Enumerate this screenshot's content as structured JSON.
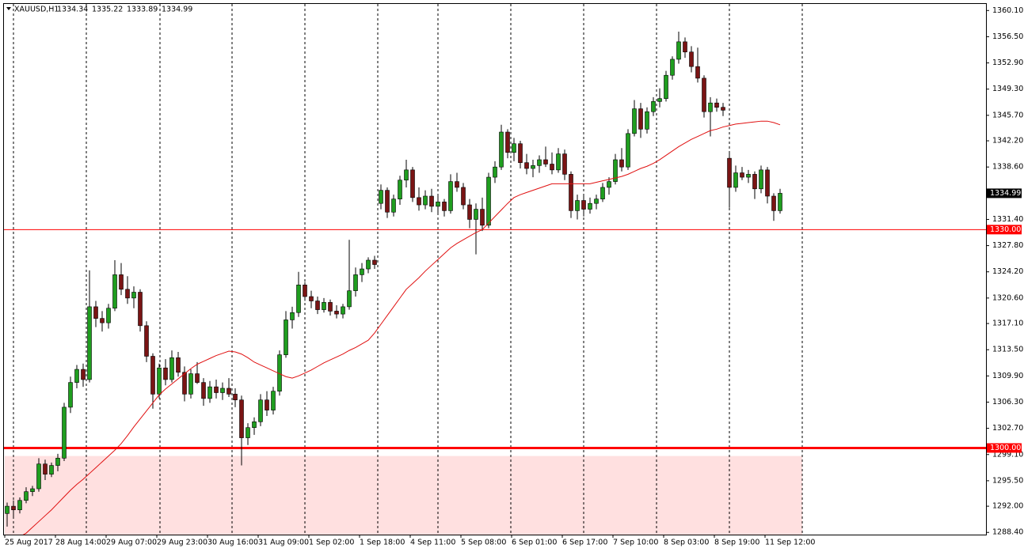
{
  "chart_data": {
    "type": "candlestick",
    "title": "XAUUSD,H1",
    "header_values": [
      1334.34,
      1335.22,
      1333.89,
      1334.99
    ],
    "categories": [
      "25 Aug 2017",
      null,
      null,
      null,
      null,
      null,
      null,
      null,
      "28 Aug 14:00",
      null,
      null,
      null,
      null,
      null,
      null,
      null,
      "29 Aug 07:00",
      null,
      null,
      null,
      null,
      null,
      null,
      null,
      "29 Aug 23:00",
      null,
      null,
      null,
      null,
      null,
      null,
      null,
      "30 Aug 16:00",
      null,
      null,
      null,
      null,
      null,
      null,
      null,
      "31 Aug 09:00",
      null,
      null,
      null,
      null,
      null,
      null,
      null,
      "1 Sep 02:00",
      null,
      null,
      null,
      null,
      null,
      null,
      null,
      "1 Sep 18:00",
      null,
      null,
      null,
      null,
      null,
      null,
      null,
      "4 Sep 11:00",
      null,
      null,
      null,
      null,
      null,
      null,
      null,
      "5 Sep 08:00",
      null,
      null,
      null,
      null,
      null,
      null,
      null,
      "6 Sep 01:00",
      null,
      null,
      null,
      null,
      null,
      null,
      null,
      "6 Sep 17:00",
      null,
      null,
      null,
      null,
      null,
      null,
      null,
      "7 Sep 10:00",
      null,
      null,
      null,
      null,
      null,
      null,
      null,
      "8 Sep 03:00",
      null,
      null,
      null,
      null,
      null,
      null,
      null,
      "8 Sep 19:00",
      null,
      null,
      null,
      null,
      null,
      null,
      null,
      "11 Sep 12:00",
      null,
      null
    ],
    "open": [
      1291.0,
      1292.0,
      1291.5,
      1292.8,
      1294.0,
      1294.4,
      1297.8,
      1296.4,
      1297.6,
      1298.6,
      1305.6,
      1309.0,
      1310.8,
      1309.4,
      1319.4,
      1317.8,
      1317.2,
      1319.2,
      1323.8,
      1321.8,
      1320.6,
      1321.4,
      1316.8,
      1312.6,
      1307.4,
      1311.0,
      1309.4,
      1312.4,
      1310.4,
      1307.4,
      1310.2,
      1309.0,
      1306.8,
      1308.4,
      1307.6,
      1308.2,
      1307.4,
      1306.6,
      1301.4,
      1302.8,
      1303.6,
      1306.6,
      1305.2,
      1307.8,
      1312.8,
      1317.6,
      1318.6,
      1322.4,
      1320.8,
      1320.2,
      1319.0,
      1320.0,
      1318.8,
      1318.4,
      1319.4,
      1321.6,
      1323.8,
      1324.6,
      1325.8,
      1333.6,
      1335.4,
      1332.4,
      1334.2,
      1336.8,
      1338.2,
      1334.4,
      1333.4,
      1334.6,
      1333.2,
      1333.8,
      1332.6,
      1336.6,
      1335.8,
      1333.4,
      1331.4,
      1332.8,
      1330.6,
      1337.2,
      1338.6,
      1343.4,
      1340.6,
      1341.8,
      1339.2,
      1338.4,
      1338.8,
      1339.6,
      1339.0,
      1338.2,
      1340.4,
      1337.6,
      1332.6,
      1334.0,
      1332.8,
      1333.6,
      1334.2,
      1335.8,
      1336.6,
      1339.6,
      1338.6,
      1343.2,
      1346.6,
      1343.8,
      1346.2,
      1347.6,
      1348.0,
      1351.2,
      1353.4,
      1355.8,
      1354.4,
      1352.4,
      1350.8,
      1346.2,
      1347.4,
      1346.8,
      1339.8,
      1335.8,
      1337.8,
      1337.2,
      1337.6,
      1335.6,
      1338.2,
      1334.6,
      1332.6
    ],
    "high": [
      1292.5,
      1292.8,
      1293.2,
      1294.6,
      1294.8,
      1298.6,
      1298.4,
      1298.0,
      1299.2,
      1306.2,
      1309.8,
      1311.4,
      1311.6,
      1324.4,
      1320.2,
      1318.8,
      1319.8,
      1325.8,
      1325.4,
      1323.6,
      1322.2,
      1321.8,
      1317.4,
      1313.0,
      1311.6,
      1312.2,
      1313.4,
      1313.2,
      1311.2,
      1310.8,
      1311.8,
      1309.6,
      1309.2,
      1309.4,
      1309.0,
      1309.6,
      1308.2,
      1307.2,
      1303.4,
      1304.2,
      1307.4,
      1307.8,
      1308.4,
      1313.4,
      1318.8,
      1319.4,
      1324.2,
      1322.8,
      1321.6,
      1320.8,
      1320.6,
      1320.4,
      1319.6,
      1319.8,
      1328.6,
      1324.8,
      1325.4,
      1326.2,
      1326.4,
      1336.2,
      1335.8,
      1334.8,
      1337.4,
      1339.6,
      1338.6,
      1335.8,
      1335.4,
      1335.6,
      1334.6,
      1334.2,
      1337.6,
      1337.8,
      1336.4,
      1334.2,
      1333.6,
      1334.4,
      1337.8,
      1339.4,
      1344.4,
      1343.8,
      1342.6,
      1342.2,
      1340.4,
      1339.6,
      1340.2,
      1341.4,
      1340.6,
      1341.2,
      1341.0,
      1338.0,
      1334.8,
      1334.6,
      1334.4,
      1334.8,
      1336.4,
      1337.2,
      1340.4,
      1341.2,
      1343.8,
      1347.8,
      1347.4,
      1346.8,
      1348.2,
      1349.4,
      1351.8,
      1353.8,
      1357.2,
      1356.4,
      1355.2,
      1355.0,
      1351.2,
      1348.2,
      1348.0,
      1347.4,
      1340.6,
      1338.8,
      1338.6,
      1338.2,
      1338.0,
      1338.8,
      1338.6,
      1335.0,
      1335.6
    ],
    "low": [
      1289.2,
      1290.6,
      1291.0,
      1292.4,
      1293.4,
      1294.0,
      1295.6,
      1296.0,
      1296.8,
      1298.2,
      1304.8,
      1308.2,
      1308.4,
      1309.0,
      1316.6,
      1316.0,
      1316.4,
      1318.8,
      1321.0,
      1319.8,
      1319.2,
      1316.0,
      1311.8,
      1305.4,
      1306.8,
      1308.6,
      1309.0,
      1309.8,
      1306.4,
      1306.8,
      1308.8,
      1305.8,
      1306.2,
      1306.8,
      1306.6,
      1307.0,
      1305.6,
      1297.6,
      1300.4,
      1301.8,
      1303.0,
      1304.4,
      1304.6,
      1307.2,
      1312.4,
      1316.4,
      1318.0,
      1320.2,
      1319.2,
      1318.4,
      1318.6,
      1318.2,
      1317.8,
      1317.8,
      1319.0,
      1320.8,
      1322.8,
      1324.0,
      1324.6,
      1332.8,
      1331.6,
      1331.8,
      1333.4,
      1335.8,
      1333.8,
      1332.6,
      1332.8,
      1332.4,
      1332.2,
      1331.8,
      1332.2,
      1335.2,
      1332.8,
      1330.2,
      1326.6,
      1329.8,
      1330.2,
      1336.4,
      1338.2,
      1339.8,
      1339.4,
      1338.4,
      1337.6,
      1337.2,
      1337.8,
      1338.6,
      1337.6,
      1337.8,
      1336.8,
      1331.6,
      1331.4,
      1331.8,
      1332.2,
      1332.8,
      1333.8,
      1334.8,
      1336.2,
      1338.0,
      1338.2,
      1342.8,
      1342.6,
      1343.2,
      1345.6,
      1346.8,
      1347.6,
      1350.6,
      1352.8,
      1353.6,
      1351.6,
      1350.2,
      1345.4,
      1342.8,
      1346.2,
      1345.6,
      1333.0,
      1335.2,
      1336.8,
      1336.4,
      1334.2,
      1335.0,
      1333.6,
      1331.2,
      1332.2
    ],
    "close": [
      1292.0,
      1291.5,
      1292.8,
      1294.0,
      1294.4,
      1297.8,
      1296.4,
      1297.6,
      1298.6,
      1305.6,
      1309.0,
      1310.8,
      1309.4,
      1319.4,
      1317.8,
      1317.2,
      1319.2,
      1323.8,
      1321.8,
      1320.6,
      1321.4,
      1316.8,
      1312.6,
      1307.4,
      1311.0,
      1309.4,
      1312.4,
      1310.4,
      1307.4,
      1310.2,
      1309.0,
      1306.8,
      1308.4,
      1307.6,
      1308.2,
      1307.4,
      1306.6,
      1301.4,
      1302.8,
      1303.6,
      1306.6,
      1305.2,
      1307.8,
      1312.8,
      1317.6,
      1318.6,
      1322.4,
      1320.8,
      1320.2,
      1319.0,
      1320.0,
      1318.8,
      1318.4,
      1319.4,
      1321.6,
      1323.8,
      1324.6,
      1325.8,
      1325.2,
      1335.4,
      1332.4,
      1334.2,
      1336.8,
      1338.2,
      1334.4,
      1333.4,
      1334.6,
      1333.2,
      1333.8,
      1332.6,
      1336.6,
      1335.8,
      1333.4,
      1331.4,
      1332.8,
      1330.6,
      1337.2,
      1338.6,
      1343.4,
      1340.6,
      1341.8,
      1339.2,
      1338.4,
      1338.8,
      1339.6,
      1339.0,
      1338.2,
      1340.4,
      1337.6,
      1332.6,
      1334.0,
      1332.8,
      1333.6,
      1334.2,
      1335.8,
      1336.6,
      1339.6,
      1338.6,
      1343.2,
      1346.6,
      1343.8,
      1346.2,
      1347.6,
      1348.0,
      1351.2,
      1353.4,
      1355.8,
      1354.4,
      1352.4,
      1350.8,
      1346.2,
      1347.4,
      1346.8,
      1346.4,
      1335.8,
      1337.8,
      1337.2,
      1337.6,
      1335.6,
      1338.2,
      1334.6,
      1332.6,
      1334.99
    ],
    "ma": [
      null,
      null,
      1287.8,
      1288.3,
      1289.1,
      1289.9,
      1290.7,
      1291.5,
      1292.4,
      1293.3,
      1294.2,
      1295.0,
      1295.7,
      1296.5,
      1297.3,
      1298.1,
      1298.9,
      1299.7,
      1300.6,
      1301.7,
      1302.9,
      1304.0,
      1305.1,
      1306.2,
      1307.3,
      1308.1,
      1308.8,
      1309.5,
      1310.2,
      1310.9,
      1311.5,
      1311.9,
      1312.3,
      1312.7,
      1313.0,
      1313.3,
      1313.2,
      1312.9,
      1312.4,
      1311.8,
      1311.4,
      1311.0,
      1310.6,
      1310.2,
      1309.8,
      1309.6,
      1309.9,
      1310.3,
      1310.7,
      1311.2,
      1311.7,
      1312.1,
      1312.5,
      1312.9,
      1313.4,
      1313.8,
      1314.3,
      1314.8,
      1315.8,
      1317.0,
      1318.2,
      1319.4,
      1320.6,
      1321.8,
      1322.6,
      1323.4,
      1324.3,
      1325.1,
      1325.9,
      1326.7,
      1327.5,
      1328.1,
      1328.6,
      1329.1,
      1329.6,
      1330.0,
      1330.9,
      1331.8,
      1332.7,
      1333.6,
      1334.4,
      1334.8,
      1335.1,
      1335.4,
      1335.7,
      1336.0,
      1336.3,
      1336.3,
      1336.3,
      1336.3,
      1336.3,
      1336.3,
      1336.3,
      1336.5,
      1336.7,
      1336.9,
      1337.1,
      1337.3,
      1337.6,
      1338.0,
      1338.4,
      1338.7,
      1339.1,
      1339.6,
      1340.2,
      1340.8,
      1341.4,
      1341.9,
      1342.4,
      1342.8,
      1343.2,
      1343.6,
      1343.8,
      1344.1,
      1344.3,
      1344.5,
      1344.6,
      1344.7,
      1344.8,
      1344.9,
      1344.9,
      1344.7,
      1344.4
    ],
    "up_color": "#1f9e1f",
    "down_color": "#7a1414",
    "wick_color": "#000000",
    "ma_color": "#e01010",
    "ylim": [
      1288.1,
      1361.0
    ],
    "yticks": [
      {
        "value": 1360.1,
        "label": "1360.10"
      },
      {
        "value": 1356.5,
        "label": "1356.50"
      },
      {
        "value": 1352.9,
        "label": "1352.90"
      },
      {
        "value": 1349.3,
        "label": "1349.30"
      },
      {
        "value": 1345.7,
        "label": "1345.70"
      },
      {
        "value": 1342.2,
        "label": "1342.20"
      },
      {
        "value": 1338.6,
        "label": "1338.60"
      },
      {
        "value": 1331.4,
        "label": "1331.40"
      },
      {
        "value": 1327.8,
        "label": "1327.80"
      },
      {
        "value": 1324.2,
        "label": "1324.20"
      },
      {
        "value": 1320.6,
        "label": "1320.60"
      },
      {
        "value": 1317.1,
        "label": "1317.10"
      },
      {
        "value": 1313.5,
        "label": "1313.50"
      },
      {
        "value": 1309.9,
        "label": "1309.90"
      },
      {
        "value": 1306.3,
        "label": "1306.30"
      },
      {
        "value": 1302.7,
        "label": "1302.70"
      },
      {
        "value": 1299.1,
        "label": "1299.10"
      },
      {
        "value": 1295.5,
        "label": "1295.50"
      },
      {
        "value": 1292.0,
        "label": "1292.00"
      },
      {
        "value": 1288.4,
        "label": "1288.40"
      }
    ],
    "hlines": [
      {
        "value": 1330,
        "label": "1330.00",
        "width": 1
      },
      {
        "value": 1300,
        "label": "1300.00",
        "width": 3
      }
    ],
    "hline_color": "#ff0000",
    "current_price": 1334.99,
    "zone_top": 1298.9,
    "zone_color": "#ffe0e0"
  }
}
